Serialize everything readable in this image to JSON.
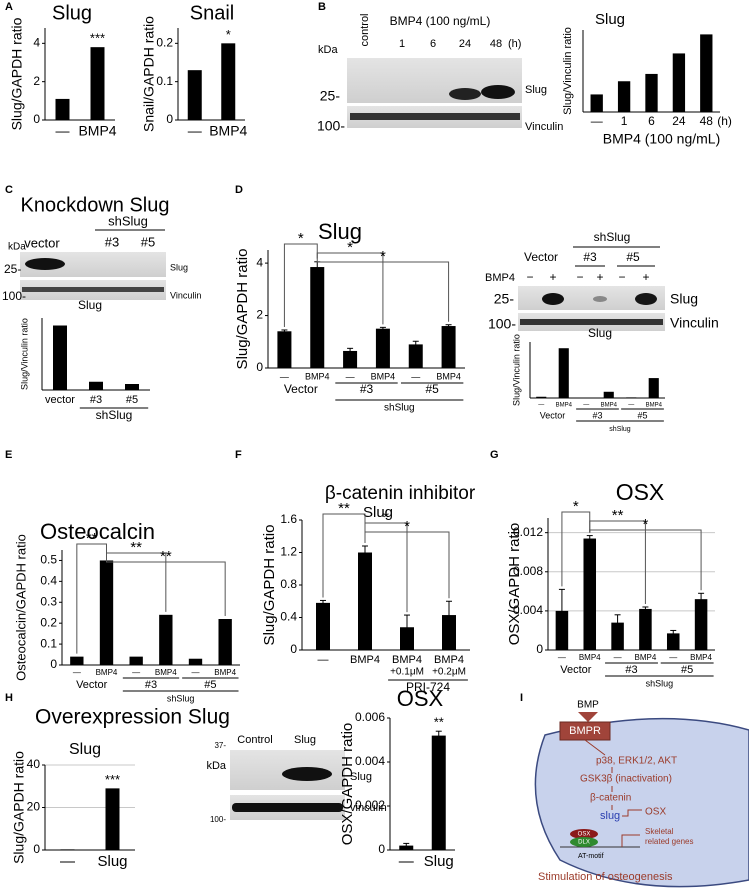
{
  "panel_labels": [
    "A",
    "B",
    "C",
    "D",
    "E",
    "F",
    "G",
    "H",
    "I"
  ],
  "chart_data": [
    {
      "type": "bar",
      "title": "Slug",
      "y_label": "Slug/GAPDH ratio",
      "categories": [
        "—",
        "BMP4"
      ],
      "values": [
        1.1,
        3.8
      ],
      "color": "#000000",
      "ylim": [
        0,
        4.8
      ],
      "yticks": [
        0,
        2,
        4
      ],
      "annotations": [
        "***"
      ]
    },
    {
      "type": "bar",
      "title": "Snail",
      "y_label": "Snail/GAPDH ratio",
      "categories": [
        "—",
        "BMP4"
      ],
      "values": [
        0.13,
        0.2
      ],
      "color": "#000000",
      "ylim": [
        0,
        0.24
      ],
      "yticks": [
        0,
        0.1,
        0.2
      ],
      "annotations": [
        "*"
      ]
    },
    {
      "type": "bar",
      "title": "Slug",
      "y_label": "Slug/Vinculin ratio",
      "categories": [
        "—",
        "1",
        "6",
        "24",
        "48"
      ],
      "unit": "(h)",
      "x_label": "BMP4 (100 ng/mL)",
      "values": [
        0.6,
        1.05,
        1.3,
        2.0,
        2.65
      ],
      "color": "#000000",
      "ylim": [
        0,
        2.8
      ]
    },
    {
      "type": "bar",
      "title": "Slug",
      "y_label": "Slug/Vinculin ratio",
      "categories": [
        "vector",
        "#3",
        "#5"
      ],
      "group_label": "shSlug",
      "values": [
        4.3,
        0.55,
        0.4
      ],
      "color": "#000000",
      "ylim": [
        0,
        4.8
      ]
    },
    {
      "type": "bar",
      "title": "Slug",
      "y_label": "Slug/GAPDH ratio",
      "categories": [
        "—",
        "BMP4",
        "—",
        "BMP4",
        "—",
        "BMP4"
      ],
      "groups": [
        "Vector",
        "#3",
        "#5"
      ],
      "group_label": "shSlug",
      "values": [
        1.4,
        3.85,
        0.65,
        1.5,
        0.9,
        1.6
      ],
      "errors": [
        0.05,
        0.2,
        0.1,
        0.05,
        0.12,
        0.05
      ],
      "color": "#000000",
      "ylim": [
        0,
        4.5
      ],
      "yticks": [
        0,
        2,
        4
      ],
      "annotations": [
        "*",
        "*",
        "*"
      ]
    },
    {
      "type": "bar",
      "title": "Slug",
      "y_label": "Slug/Vinculin ratio",
      "categories": [
        "—",
        "BMP4",
        "—",
        "BMP4",
        "—",
        "BMP4"
      ],
      "groups": [
        "Vector",
        "#3",
        "#5"
      ],
      "group_label": "shSlug",
      "values": [
        0.1,
        4.0,
        0.04,
        0.5,
        0.05,
        1.6
      ],
      "color": "#000000",
      "ylim": [
        0,
        4.5
      ]
    },
    {
      "type": "bar",
      "title": "Osteocalcin",
      "y_label": "Osteocalcin/GAPDH ratio",
      "categories": [
        "—",
        "BMP4",
        "—",
        "BMP4",
        "—",
        "BMP4"
      ],
      "groups": [
        "Vector",
        "#3",
        "#5"
      ],
      "group_label": "shSlug",
      "values": [
        0.04,
        0.5,
        0.04,
        0.24,
        0.03,
        0.22
      ],
      "color": "#000000",
      "ylim": [
        0,
        0.55
      ],
      "yticks": [
        0,
        0.1,
        0.2,
        0.3,
        0.4,
        0.5
      ],
      "annotations": [
        "**",
        "**",
        "**"
      ]
    },
    {
      "type": "bar",
      "title": "β-catenin inhibitor",
      "subtitle": "Slug",
      "y_label": "Slug/GAPDH ratio",
      "categories": [
        "—",
        "BMP4",
        "BMP4",
        "BMP4"
      ],
      "doses": [
        "+0.1μM",
        "+0.2μM"
      ],
      "group_label": "PRI-724",
      "values": [
        0.58,
        1.2,
        0.28,
        0.43
      ],
      "errors": [
        0.03,
        0.08,
        0.15,
        0.17
      ],
      "color": "#000000",
      "ylim": [
        0,
        1.6
      ],
      "yticks": [
        0,
        0.4,
        0.8,
        1.2,
        1.6
      ],
      "annotations": [
        "**",
        "*",
        "*"
      ]
    },
    {
      "type": "bar",
      "title": "OSX",
      "y_label": "OSX/GAPDH ratio",
      "categories": [
        "—",
        "BMP4",
        "—",
        "BMP4",
        "—",
        "BMP4"
      ],
      "groups": [
        "Vector",
        "#3",
        "#5"
      ],
      "group_label": "shSlug",
      "values": [
        0.004,
        0.0114,
        0.0028,
        0.0042,
        0.0017,
        0.0052
      ],
      "errors": [
        0.0022,
        0.0003,
        0.0008,
        0.0002,
        0.0003,
        0.0006
      ],
      "color": "#000000",
      "ylim": [
        0,
        0.0135
      ],
      "yticks": [
        0,
        0.004,
        0.008,
        0.012
      ],
      "grid": true,
      "annotations": [
        "*",
        "**",
        "*"
      ]
    },
    {
      "type": "bar",
      "title": "Slug",
      "y_label": "Slug/GAPDH ratio",
      "categories": [
        "—",
        "Slug"
      ],
      "values": [
        0.3,
        29
      ],
      "color": "#000000",
      "ylim": [
        0,
        40
      ],
      "yticks": [
        0,
        20,
        40
      ],
      "grid": true,
      "annotations": [
        "***"
      ]
    },
    {
      "type": "bar",
      "title": "OSX",
      "y_label": "OSX/GAPDH ratio",
      "categories": [
        "—",
        "Slug"
      ],
      "values": [
        0.0002,
        0.0052
      ],
      "errors": [
        0.0001,
        0.0002
      ],
      "color": "#000000",
      "ylim": [
        0,
        0.006
      ],
      "yticks": [
        0,
        0.002,
        0.004,
        0.006
      ],
      "annotations": [
        "**"
      ]
    }
  ],
  "blots": {
    "B": {
      "kda": "kDa",
      "control": "control",
      "treatment": "BMP4 (100 ng/mL)",
      "lanes": [
        "1",
        "6",
        "24",
        "48"
      ],
      "unit": "(h)",
      "markers": [
        "25-",
        "100-"
      ],
      "bands": [
        "Slug",
        "Vinculin"
      ]
    },
    "C": {
      "title": "Knockdown Slug",
      "kda": "kDa",
      "lanes": [
        "vector",
        "#3",
        "#5"
      ],
      "group": "shSlug",
      "markers": [
        "25-",
        "100-"
      ],
      "bands": [
        "Slug",
        "Vinculin"
      ]
    },
    "D": {
      "lanes": [
        "Vector",
        "#3",
        "#5"
      ],
      "group": "shSlug",
      "treatment": "BMP4",
      "signs": [
        "−",
        "+",
        "−",
        "+",
        "−",
        "+"
      ],
      "markers": [
        "25-",
        "100-"
      ],
      "bands": [
        "Slug",
        "Vinculin"
      ]
    },
    "H": {
      "title": "Overexpression Slug",
      "lanes": [
        "Control",
        "Slug"
      ],
      "markers": [
        "37-",
        "kDa",
        "100-"
      ],
      "bands": [
        "Slug",
        "vinculin"
      ]
    }
  },
  "diagram": {
    "ligand": "BMP",
    "receptor": "BMPR",
    "kinases": "p38, ERK1/2, AKT",
    "gsk": "GSK3β (inactivation)",
    "catenin": "β-catenin",
    "slug": "slug",
    "target": "OSX",
    "complex": [
      "OSX",
      "DLX"
    ],
    "motif": "AT-motif",
    "genes": [
      "Skeletal",
      "related genes"
    ],
    "outcome": "Stimulation of osteogenesis"
  }
}
